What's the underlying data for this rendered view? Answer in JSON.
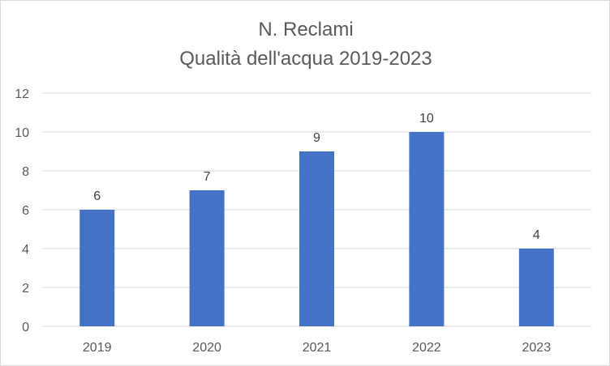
{
  "chart_data": {
    "type": "bar",
    "title": "N. Reclami",
    "subtitle": "Qualità dell'acqua 2019-2023",
    "categories": [
      "2019",
      "2020",
      "2021",
      "2022",
      "2023"
    ],
    "values": [
      6,
      7,
      9,
      10,
      4
    ],
    "ylim": [
      0,
      12
    ],
    "yticks": [
      0,
      2,
      4,
      6,
      8,
      10,
      12
    ],
    "xlabel": "",
    "ylabel": "",
    "grid": true,
    "legend": "none",
    "bar_color": "#4472c4",
    "grid_color": "#d9d9d9"
  }
}
